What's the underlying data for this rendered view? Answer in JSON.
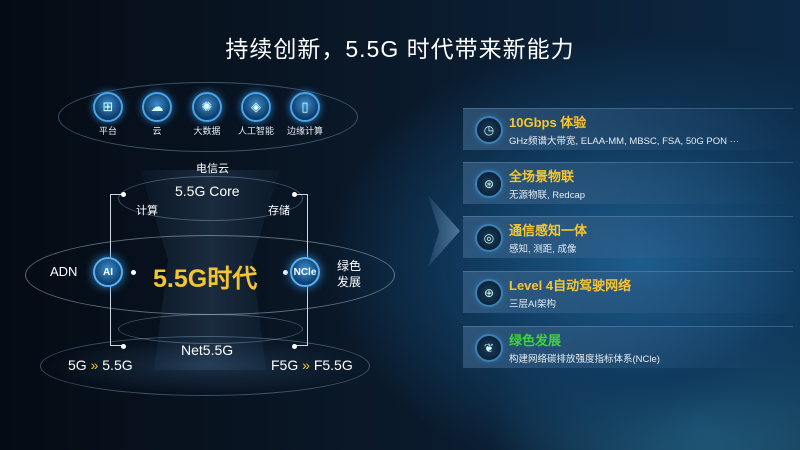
{
  "title": "持续创新，5.5G 时代带来新能力",
  "top_icons": [
    {
      "icon": "platform-icon",
      "label": "平台"
    },
    {
      "icon": "cloud-icon",
      "label": "云"
    },
    {
      "icon": "big-data-icon",
      "label": "大数据"
    },
    {
      "icon": "ai-icon",
      "label": "人工智能"
    },
    {
      "icon": "edge-computing-icon",
      "label": "边缘计算"
    }
  ],
  "diagram": {
    "telecom_cloud": "电信云",
    "core": "5.5G Core",
    "compute": "计算",
    "storage": "存储",
    "adn": "ADN",
    "ai_badge": "AI",
    "era": "5.5G时代",
    "ncle_badge": "NCle",
    "green": "绿色",
    "green2": "发展",
    "net": "Net5.5G",
    "left_from": "5G",
    "left_to": "5.5G",
    "right_from": "F5G",
    "right_to": "F5.5G",
    "arrow_glyph": "»"
  },
  "items": [
    {
      "icon": "timer-icon",
      "title": "10Gbps 体验",
      "subtitle": "GHz频谱大带宽, ELAA-MM, MBSC, FSA, 50G PON ···",
      "color": "#f4c531"
    },
    {
      "icon": "iot-icon",
      "title": "全场景物联",
      "subtitle": "无源物联, Redcap",
      "color": "#f4c531"
    },
    {
      "icon": "sensing-icon",
      "title": "通信感知一体",
      "subtitle": "感知, 测距, 成像",
      "color": "#f4c531"
    },
    {
      "icon": "network-globe-icon",
      "title": "Level 4自动驾驶网络",
      "subtitle": "三层AI架构",
      "color": "#f4c531"
    },
    {
      "icon": "leaf-icon",
      "title": "绿色发展",
      "subtitle": "构建网络碳排放强度指标体系(NCle)",
      "color": "#3fd23a"
    }
  ]
}
